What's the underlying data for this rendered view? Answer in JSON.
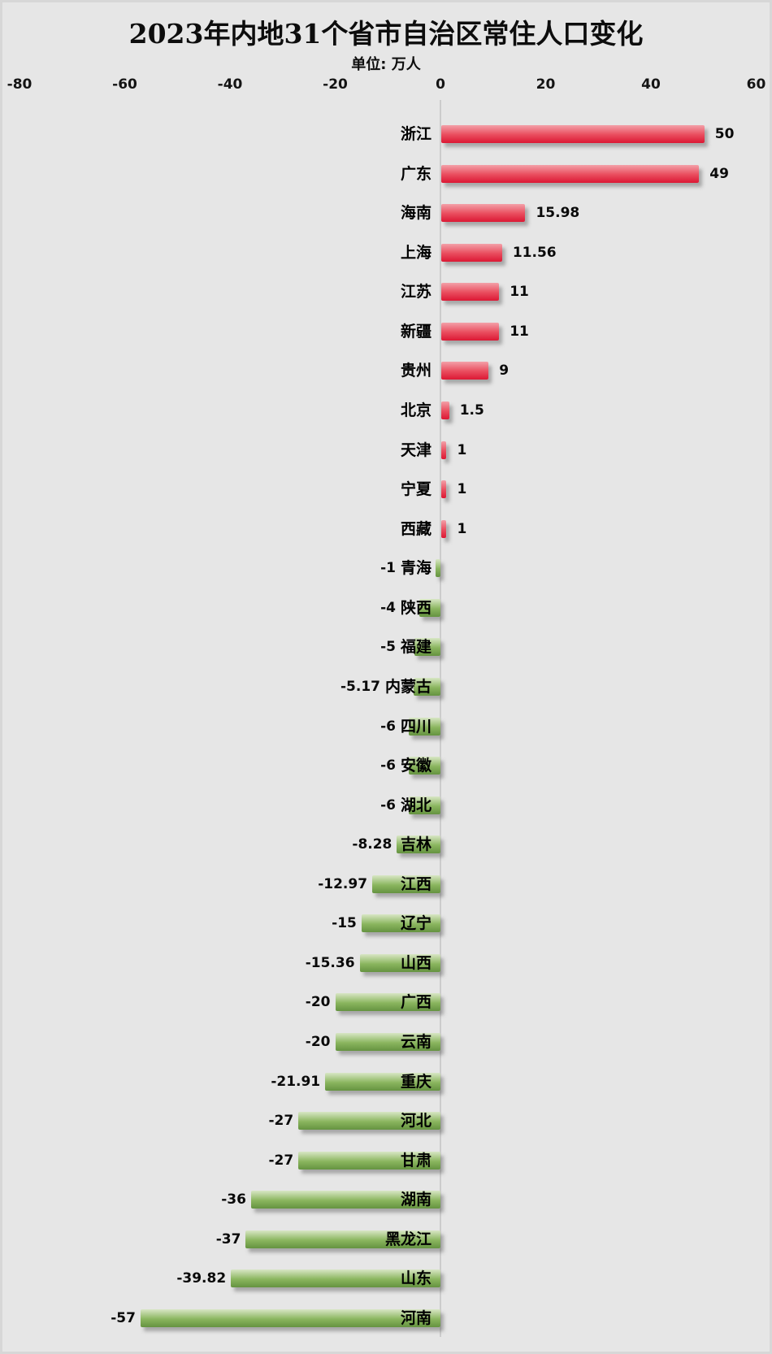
{
  "chart_data": {
    "type": "bar",
    "orientation": "horizontal",
    "title": "2023年内地31个省市自治区常住人口变化",
    "unit_label": "单位: 万人",
    "unit": "万人",
    "xlim": [
      -80,
      60
    ],
    "axis_ticks": [
      "-80",
      "-60",
      "-40",
      "-20",
      "0",
      "20",
      "40",
      "60"
    ],
    "grid": false,
    "legend": null,
    "positive_color": "#e1293f",
    "negative_color": "#7cab52",
    "categories": [
      "浙江",
      "广东",
      "海南",
      "上海",
      "江苏",
      "新疆",
      "贵州",
      "北京",
      "天津",
      "宁夏",
      "西藏",
      "青海",
      "陕西",
      "福建",
      "内蒙古",
      "四川",
      "安徽",
      "湖北",
      "吉林",
      "江西",
      "辽宁",
      "山西",
      "广西",
      "云南",
      "重庆",
      "河北",
      "甘肃",
      "湖南",
      "黑龙江",
      "山东",
      "河南"
    ],
    "values": [
      50,
      49,
      15.98,
      11.56,
      11,
      11,
      9,
      1.5,
      1,
      1,
      1,
      -1,
      -4,
      -5,
      -5.17,
      -6,
      -6,
      -6,
      -8.28,
      -12.97,
      -15,
      -15.36,
      -20,
      -20,
      -21.91,
      -27,
      -27,
      -36,
      -37,
      -39.82,
      -57
    ],
    "value_labels": [
      "50",
      "49",
      "15.98",
      "11.56",
      "11",
      "11",
      "9",
      "1.5",
      "1",
      "1",
      "1",
      "-1",
      "-4",
      "-5",
      "-5.17",
      "-6",
      "-6",
      "-6",
      "-8.28",
      "-12.97",
      "-15",
      "-15.36",
      "-20",
      "-20",
      "-21.91",
      "-27",
      "-27",
      "-36",
      "-37",
      "-39.82",
      "-57"
    ]
  }
}
